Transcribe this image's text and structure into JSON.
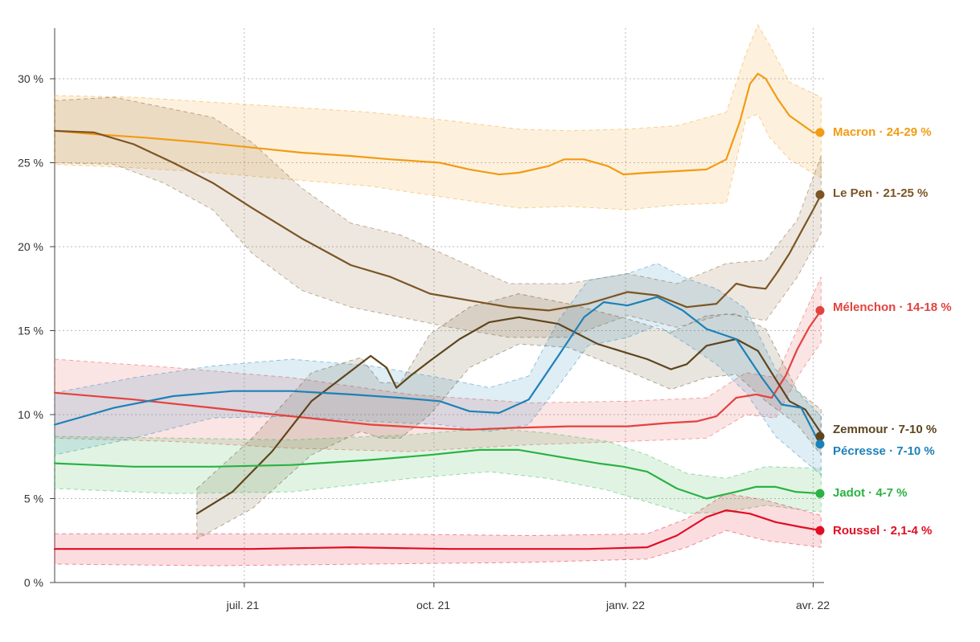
{
  "chart_data": {
    "type": "line",
    "title": "",
    "xlabel": "",
    "ylabel": "",
    "x_ticks": [
      "juil. 21",
      "oct. 21",
      "janv. 22",
      "avr. 22"
    ],
    "y_ticks": [
      "0 %",
      "5 %",
      "10 %",
      "15 %",
      "20 %",
      "25 %",
      "30 %"
    ],
    "ylim": [
      0,
      33
    ],
    "grid": "dotted",
    "legend": "end-of-line labels",
    "series": [
      {
        "name": "Macron",
        "range_label": "24-29 %",
        "label": "Macron · 24-29 %",
        "color": "#f39b12",
        "points": [
          [
            0,
            26.9
          ],
          [
            20,
            26.7
          ],
          [
            45,
            26.5
          ],
          [
            75,
            26.2
          ],
          [
            100,
            25.9
          ],
          [
            125,
            25.6
          ],
          [
            150,
            25.4
          ],
          [
            170,
            25.2
          ],
          [
            195,
            25.0
          ],
          [
            210,
            24.6
          ],
          [
            225,
            24.3
          ],
          [
            235,
            24.4
          ],
          [
            250,
            24.8
          ],
          [
            258,
            25.2
          ],
          [
            268,
            25.2
          ],
          [
            280,
            24.8
          ],
          [
            288,
            24.3
          ],
          [
            300,
            24.4
          ],
          [
            315,
            24.5
          ],
          [
            330,
            24.6
          ],
          [
            340,
            25.2
          ],
          [
            347,
            27.5
          ],
          [
            352,
            29.7
          ],
          [
            356,
            30.3
          ],
          [
            360,
            30.0
          ],
          [
            366,
            28.8
          ],
          [
            372,
            27.8
          ],
          [
            378,
            27.3
          ],
          [
            384,
            26.8
          ],
          [
            388,
            26.8
          ]
        ],
        "band": [
          [
            0,
            29.0,
            24.9
          ],
          [
            40,
            28.9,
            24.7
          ],
          [
            80,
            28.6,
            24.4
          ],
          [
            120,
            28.3,
            24.0
          ],
          [
            160,
            28.0,
            23.6
          ],
          [
            200,
            27.5,
            22.9
          ],
          [
            235,
            27.0,
            22.3
          ],
          [
            260,
            26.9,
            22.4
          ],
          [
            290,
            27.0,
            22.2
          ],
          [
            315,
            27.2,
            22.5
          ],
          [
            340,
            28.0,
            22.6
          ],
          [
            350,
            31.5,
            27.6
          ],
          [
            356,
            33.2,
            27.9
          ],
          [
            362,
            32.0,
            26.5
          ],
          [
            372,
            29.8,
            25.2
          ],
          [
            388,
            28.9,
            24.1
          ]
        ]
      },
      {
        "name": "Le Pen",
        "range_label": "21-25 %",
        "label": "Le Pen · 21-25 %",
        "color": "#7c5524",
        "points": [
          [
            0,
            26.9
          ],
          [
            20,
            26.8
          ],
          [
            40,
            26.1
          ],
          [
            60,
            25.0
          ],
          [
            80,
            23.8
          ],
          [
            100,
            22.3
          ],
          [
            125,
            20.5
          ],
          [
            150,
            18.9
          ],
          [
            170,
            18.2
          ],
          [
            190,
            17.2
          ],
          [
            210,
            16.8
          ],
          [
            230,
            16.4
          ],
          [
            250,
            16.2
          ],
          [
            270,
            16.6
          ],
          [
            290,
            17.3
          ],
          [
            305,
            17.1
          ],
          [
            320,
            16.4
          ],
          [
            335,
            16.6
          ],
          [
            345,
            17.8
          ],
          [
            352,
            17.6
          ],
          [
            360,
            17.5
          ],
          [
            366,
            18.5
          ],
          [
            372,
            19.6
          ],
          [
            378,
            20.9
          ],
          [
            384,
            22.2
          ],
          [
            388,
            23.1
          ]
        ],
        "band": [
          [
            0,
            28.7,
            25.0
          ],
          [
            30,
            28.9,
            24.9
          ],
          [
            55,
            28.3,
            23.8
          ],
          [
            80,
            27.7,
            22.2
          ],
          [
            100,
            26.2,
            19.6
          ],
          [
            125,
            23.5,
            17.4
          ],
          [
            150,
            21.4,
            16.4
          ],
          [
            175,
            20.7,
            15.8
          ],
          [
            200,
            19.4,
            15.2
          ],
          [
            230,
            17.8,
            14.6
          ],
          [
            260,
            17.8,
            14.6
          ],
          [
            290,
            18.4,
            15.9
          ],
          [
            315,
            17.8,
            15.2
          ],
          [
            340,
            19.0,
            16.0
          ],
          [
            360,
            19.2,
            15.6
          ],
          [
            376,
            21.6,
            18.2
          ],
          [
            388,
            25.4,
            20.8
          ]
        ]
      },
      {
        "name": "Mélenchon",
        "range_label": "14-18 %",
        "label": "Mélenchon · 14-18 %",
        "color": "#e3423f",
        "points": [
          [
            0,
            11.3
          ],
          [
            40,
            10.9
          ],
          [
            80,
            10.4
          ],
          [
            120,
            9.9
          ],
          [
            160,
            9.4
          ],
          [
            190,
            9.2
          ],
          [
            210,
            9.1
          ],
          [
            230,
            9.2
          ],
          [
            260,
            9.3
          ],
          [
            290,
            9.3
          ],
          [
            310,
            9.5
          ],
          [
            325,
            9.6
          ],
          [
            335,
            9.9
          ],
          [
            345,
            11.0
          ],
          [
            355,
            11.2
          ],
          [
            363,
            11.0
          ],
          [
            370,
            12.3
          ],
          [
            376,
            13.9
          ],
          [
            382,
            15.2
          ],
          [
            388,
            16.2
          ]
        ],
        "band": [
          [
            0,
            13.3,
            8.6
          ],
          [
            60,
            12.8,
            8.4
          ],
          [
            120,
            12.2,
            8.0
          ],
          [
            180,
            11.2,
            7.8
          ],
          [
            240,
            10.7,
            8.2
          ],
          [
            290,
            10.8,
            8.4
          ],
          [
            330,
            11.0,
            8.6
          ],
          [
            350,
            12.5,
            10.0
          ],
          [
            365,
            12.2,
            9.8
          ],
          [
            378,
            15.6,
            12.6
          ],
          [
            388,
            18.2,
            14.3
          ]
        ]
      },
      {
        "name": "Zemmour",
        "range_label": "7-10 %",
        "label": "Zemmour · 7-10 %",
        "color": "#5e451c",
        "points": [
          [
            72,
            4.1
          ],
          [
            90,
            5.4
          ],
          [
            110,
            7.8
          ],
          [
            130,
            10.8
          ],
          [
            150,
            12.6
          ],
          [
            160,
            13.5
          ],
          [
            168,
            12.8
          ],
          [
            173,
            11.6
          ],
          [
            180,
            12.3
          ],
          [
            190,
            13.2
          ],
          [
            205,
            14.5
          ],
          [
            220,
            15.5
          ],
          [
            235,
            15.8
          ],
          [
            255,
            15.4
          ],
          [
            275,
            14.2
          ],
          [
            300,
            13.3
          ],
          [
            312,
            12.7
          ],
          [
            320,
            13.0
          ],
          [
            330,
            14.1
          ],
          [
            345,
            14.5
          ],
          [
            356,
            13.8
          ],
          [
            364,
            12.3
          ],
          [
            372,
            10.8
          ],
          [
            380,
            10.3
          ],
          [
            388,
            8.9
          ]
        ],
        "band": [
          [
            72,
            5.6,
            2.6
          ],
          [
            100,
            8.6,
            4.4
          ],
          [
            130,
            12.5,
            7.6
          ],
          [
            155,
            13.4,
            9.0
          ],
          [
            165,
            11.9,
            8.6
          ],
          [
            175,
            11.9,
            8.6
          ],
          [
            190,
            14.8,
            10.0
          ],
          [
            210,
            16.4,
            12.8
          ],
          [
            235,
            17.2,
            14.2
          ],
          [
            260,
            16.6,
            14.0
          ],
          [
            290,
            15.7,
            12.6
          ],
          [
            312,
            14.9,
            11.5
          ],
          [
            330,
            15.9,
            12.2
          ],
          [
            345,
            16.0,
            12.4
          ],
          [
            360,
            15.1,
            10.8
          ],
          [
            376,
            11.4,
            9.4
          ],
          [
            388,
            10.3,
            7.6
          ]
        ]
      },
      {
        "name": "Pécresse",
        "range_label": "7-10 %",
        "label": "Pécresse · 7-10 %",
        "color": "#1b82b8",
        "points": [
          [
            0,
            9.4
          ],
          [
            30,
            10.4
          ],
          [
            60,
            11.1
          ],
          [
            90,
            11.4
          ],
          [
            120,
            11.4
          ],
          [
            150,
            11.2
          ],
          [
            175,
            11.0
          ],
          [
            195,
            10.8
          ],
          [
            210,
            10.2
          ],
          [
            225,
            10.1
          ],
          [
            240,
            10.9
          ],
          [
            255,
            13.5
          ],
          [
            268,
            15.8
          ],
          [
            278,
            16.7
          ],
          [
            290,
            16.5
          ],
          [
            305,
            17.0
          ],
          [
            318,
            16.2
          ],
          [
            330,
            15.1
          ],
          [
            345,
            14.5
          ],
          [
            358,
            12.2
          ],
          [
            368,
            10.6
          ],
          [
            378,
            10.4
          ],
          [
            388,
            8.1
          ]
        ],
        "band": [
          [
            0,
            11.3,
            7.6
          ],
          [
            40,
            12.2,
            8.6
          ],
          [
            80,
            12.9,
            9.8
          ],
          [
            120,
            13.3,
            9.9
          ],
          [
            160,
            12.9,
            9.6
          ],
          [
            195,
            12.2,
            9.4
          ],
          [
            220,
            11.6,
            9.0
          ],
          [
            240,
            12.3,
            9.4
          ],
          [
            255,
            15.6,
            11.7
          ],
          [
            270,
            18.0,
            14.1
          ],
          [
            290,
            18.4,
            14.6
          ],
          [
            305,
            19.0,
            15.3
          ],
          [
            320,
            18.1,
            14.2
          ],
          [
            335,
            17.5,
            13.0
          ],
          [
            350,
            16.3,
            11.3
          ],
          [
            365,
            12.7,
            8.7
          ],
          [
            388,
            9.9,
            6.4
          ]
        ]
      },
      {
        "name": "Jadot",
        "range_label": "4-7 %",
        "label": "Jadot · 4-7 %",
        "color": "#2ab243",
        "points": [
          [
            0,
            7.1
          ],
          [
            40,
            6.9
          ],
          [
            80,
            6.9
          ],
          [
            120,
            7.0
          ],
          [
            160,
            7.3
          ],
          [
            190,
            7.6
          ],
          [
            215,
            7.9
          ],
          [
            235,
            7.9
          ],
          [
            255,
            7.5
          ],
          [
            275,
            7.1
          ],
          [
            288,
            6.9
          ],
          [
            300,
            6.6
          ],
          [
            315,
            5.6
          ],
          [
            330,
            5.0
          ],
          [
            345,
            5.4
          ],
          [
            355,
            5.7
          ],
          [
            365,
            5.7
          ],
          [
            375,
            5.4
          ],
          [
            388,
            5.3
          ]
        ],
        "band": [
          [
            0,
            8.7,
            5.6
          ],
          [
            60,
            8.6,
            5.3
          ],
          [
            120,
            8.5,
            5.4
          ],
          [
            180,
            8.8,
            6.2
          ],
          [
            220,
            9.2,
            6.6
          ],
          [
            250,
            8.9,
            6.2
          ],
          [
            280,
            8.4,
            5.5
          ],
          [
            300,
            7.6,
            4.8
          ],
          [
            320,
            6.5,
            4.1
          ],
          [
            340,
            6.2,
            4.2
          ],
          [
            360,
            6.9,
            4.6
          ],
          [
            388,
            6.8,
            4.2
          ]
        ]
      },
      {
        "name": "Roussel",
        "range_label": "2,1-4 %",
        "label": "Roussel · 2,1-4 %",
        "color": "#e10d23",
        "points": [
          [
            0,
            2.0
          ],
          [
            50,
            2.0
          ],
          [
            100,
            2.0
          ],
          [
            150,
            2.1
          ],
          [
            200,
            2.0
          ],
          [
            240,
            2.0
          ],
          [
            270,
            2.0
          ],
          [
            300,
            2.1
          ],
          [
            315,
            2.8
          ],
          [
            330,
            3.9
          ],
          [
            340,
            4.3
          ],
          [
            352,
            4.1
          ],
          [
            365,
            3.6
          ],
          [
            378,
            3.3
          ],
          [
            388,
            3.1
          ]
        ],
        "band": [
          [
            0,
            2.9,
            1.1
          ],
          [
            80,
            2.9,
            1.0
          ],
          [
            160,
            2.9,
            1.1
          ],
          [
            240,
            2.8,
            1.2
          ],
          [
            300,
            2.9,
            1.4
          ],
          [
            320,
            3.8,
            2.1
          ],
          [
            340,
            5.3,
            3.1
          ],
          [
            360,
            4.9,
            2.5
          ],
          [
            388,
            4.0,
            2.1
          ]
        ]
      }
    ]
  }
}
